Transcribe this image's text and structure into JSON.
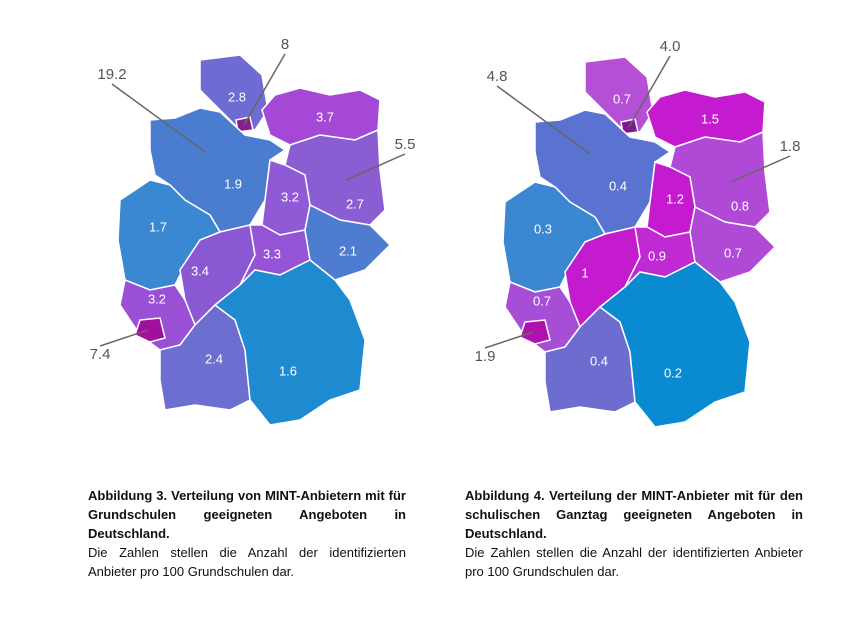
{
  "maps": [
    {
      "regions": [
        {
          "label": "2.8",
          "color": "#6e6bd2"
        },
        {
          "label": "8",
          "color": "#8c1a90"
        },
        {
          "label": "3.7",
          "color": "#a548d6"
        },
        {
          "label": "19.2",
          "color": "#8a2a95"
        },
        {
          "label": "1.9",
          "color": "#4a7dd0"
        },
        {
          "label": "5.5",
          "color": "#b0179e"
        },
        {
          "label": "2.7",
          "color": "#8a5dd2"
        },
        {
          "label": "3.2",
          "color": "#905ad6"
        },
        {
          "label": "1.7",
          "color": "#3a87d2"
        },
        {
          "label": "3.4",
          "color": "#8b58d4"
        },
        {
          "label": "3.3",
          "color": "#9554d5"
        },
        {
          "label": "2.1",
          "color": "#4d7cd0"
        },
        {
          "label": "3.2",
          "color": "#9a50d5"
        },
        {
          "label": "7.4",
          "color": "#a0109c"
        },
        {
          "label": "2.4",
          "color": "#6c6fd0"
        },
        {
          "label": "1.6",
          "color": "#1e8ad0"
        }
      ],
      "caption": {
        "title": "Abbildung 3. Verteilung von MINT-Anbietern mit für Grundschulen geeigneten Angeboten in Deutschland.",
        "text": "Die Zahlen stellen die Anzahl der identifizierten Anbieter pro 100 Grundschulen dar."
      }
    },
    {
      "regions": [
        {
          "label": "0.7",
          "color": "#b44fd6"
        },
        {
          "label": "4.0",
          "color": "#7a1a8a"
        },
        {
          "label": "1.5",
          "color": "#c41bd0"
        },
        {
          "label": "4.8",
          "color": "#5a70d0"
        },
        {
          "label": "0.4",
          "color": "#5a72d0"
        },
        {
          "label": "1.8",
          "color": "#cc1ec8"
        },
        {
          "label": "0.8",
          "color": "#b04ad6"
        },
        {
          "label": "1.2",
          "color": "#c61ad0"
        },
        {
          "label": "0.3",
          "color": "#3b87d2"
        },
        {
          "label": "1",
          "color": "#c41bcf"
        },
        {
          "label": "0.9",
          "color": "#c02ad2"
        },
        {
          "label": "0.7",
          "color": "#b04ad6"
        },
        {
          "label": "0.7",
          "color": "#a64fd6"
        },
        {
          "label": "1.9",
          "color": "#b010b0"
        },
        {
          "label": "0.4",
          "color": "#6d6ccf"
        },
        {
          "label": "0.2",
          "color": "#0a8ad0"
        }
      ],
      "caption": {
        "title": "Abbildung 4. Verteilung der MINT-Anbieter mit für den schulischen Ganztag geeigneten Angeboten in Deutschland.",
        "text": "Die Zahlen stellen die Anzahl der identifizierten Anbieter pro 100 Grundschulen dar."
      }
    }
  ]
}
